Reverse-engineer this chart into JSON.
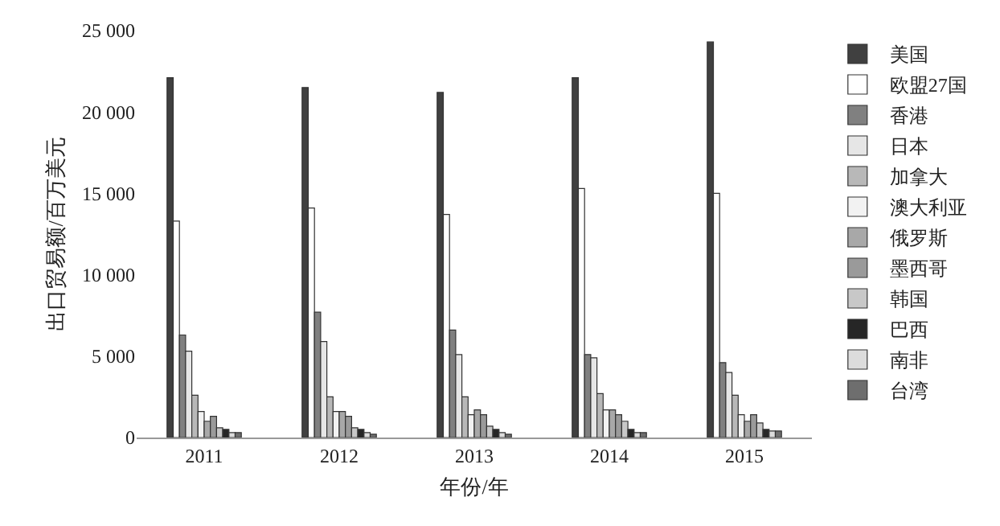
{
  "chart_data": {
    "type": "bar",
    "xlabel": "年份/年",
    "ylabel": "出口贸易额/百万美元",
    "categories": [
      "2011",
      "2012",
      "2013",
      "2014",
      "2015"
    ],
    "series": [
      {
        "name": "美国",
        "color": "#404040",
        "values": [
          22100,
          21500,
          21200,
          22100,
          24300
        ]
      },
      {
        "name": "欧盟27国",
        "color": "#ffffff",
        "values": [
          13300,
          14100,
          13700,
          15300,
          15000
        ]
      },
      {
        "name": "香港",
        "color": "#808080",
        "values": [
          6300,
          7700,
          6600,
          5100,
          4600
        ]
      },
      {
        "name": "日本",
        "color": "#e6e6e6",
        "values": [
          5300,
          5900,
          5100,
          4900,
          4000
        ]
      },
      {
        "name": "加拿大",
        "color": "#b8b8b8",
        "values": [
          2600,
          2500,
          2500,
          2700,
          2600
        ]
      },
      {
        "name": "澳大利亚",
        "color": "#f2f2f2",
        "values": [
          1600,
          1600,
          1400,
          1700,
          1400
        ]
      },
      {
        "name": "俄罗斯",
        "color": "#a8a8a8",
        "values": [
          1000,
          1600,
          1700,
          1700,
          1000
        ]
      },
      {
        "name": "墨西哥",
        "color": "#9a9a9a",
        "values": [
          1300,
          1300,
          1400,
          1400,
          1400
        ]
      },
      {
        "name": "韩国",
        "color": "#c8c8c8",
        "values": [
          600,
          600,
          700,
          1000,
          900
        ]
      },
      {
        "name": "巴西",
        "color": "#262626",
        "values": [
          500,
          500,
          500,
          500,
          500
        ]
      },
      {
        "name": "南非",
        "color": "#dcdcdc",
        "values": [
          300,
          300,
          300,
          300,
          400
        ]
      },
      {
        "name": "台湾",
        "color": "#6e6e6e",
        "values": [
          300,
          200,
          200,
          300,
          400
        ]
      }
    ],
    "ylim": [
      0,
      25000
    ],
    "yticks": [
      0,
      {
        "value": 5000,
        "label": "5 000"
      },
      {
        "value": 10000,
        "label": "10 000"
      },
      {
        "value": 15000,
        "label": "15 000"
      },
      {
        "value": 20000,
        "label": "20 000"
      },
      {
        "value": 25000,
        "label": "25 000"
      }
    ],
    "grid": false,
    "legend": "right"
  }
}
